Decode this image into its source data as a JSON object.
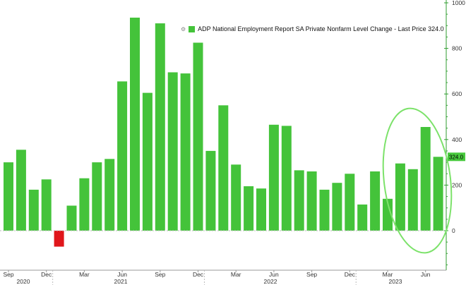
{
  "chart_data": {
    "type": "bar",
    "legend": {
      "icon": "gear-icon",
      "label": "ADP National Employment Report SA Private Nonfarm Level Change - Last Price 324.0",
      "placement": "top-center"
    },
    "last_price_label": "324.0",
    "ylim": [
      -95,
      1000
    ],
    "y_ticks": [
      "0",
      "200",
      "400",
      "600",
      "800",
      "1000"
    ],
    "x_month_labels": [
      "Sep",
      "Dec",
      "Mar",
      "Jun",
      "Sep",
      "Dec",
      "Mar",
      "Jun",
      "Sep",
      "Dec",
      "Mar",
      "Jun"
    ],
    "x_year_labels": [
      "2020",
      "2021",
      "2022",
      "2023"
    ],
    "categories": [
      "2020-09",
      "2020-10",
      "2020-11",
      "2020-12",
      "2021-01",
      "2021-02",
      "2021-03",
      "2021-04",
      "2021-05",
      "2021-06",
      "2021-07",
      "2021-08",
      "2021-09",
      "2021-10",
      "2021-11",
      "2021-12",
      "2022-01",
      "2022-02",
      "2022-03",
      "2022-04",
      "2022-05",
      "2022-06",
      "2022-07",
      "2022-08",
      "2022-09",
      "2022-10",
      "2022-11",
      "2022-12",
      "2023-01",
      "2023-02",
      "2023-03",
      "2023-04",
      "2023-05",
      "2023-06",
      "2023-07"
    ],
    "values": [
      300,
      355,
      180,
      225,
      -70,
      110,
      230,
      300,
      315,
      655,
      935,
      605,
      910,
      695,
      690,
      825,
      350,
      550,
      290,
      195,
      185,
      465,
      460,
      265,
      260,
      180,
      210,
      250,
      115,
      260,
      140,
      295,
      270,
      455,
      324
    ],
    "grid": false,
    "colors": {
      "positive_bar": "#44c33a",
      "negative_bar": "#e0161b",
      "axis": "#2f9d2f",
      "highlight_ellipse": "#7ce26a",
      "last_price_label_bg": "#47c93c"
    }
  }
}
